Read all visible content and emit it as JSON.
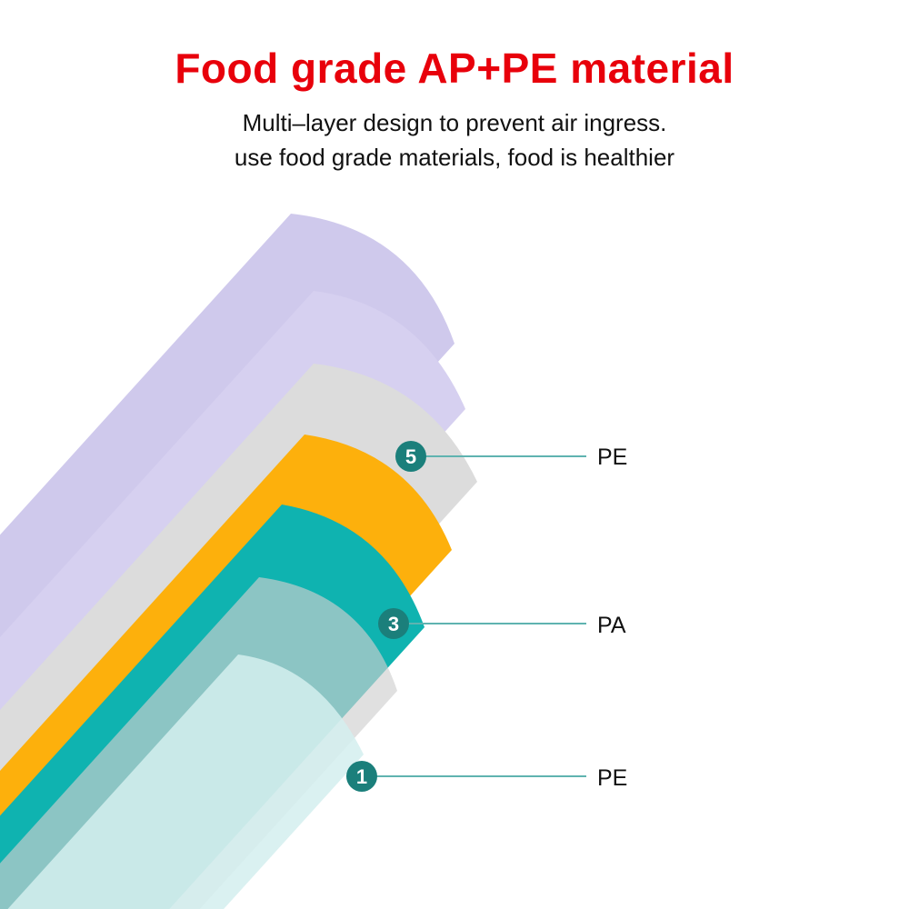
{
  "title": "Food grade AP+PE material",
  "subtitle_lines": [
    "Multi–layer design to prevent air ingress.",
    "use food grade materials, food is healthier"
  ],
  "callouts": [
    {
      "number": "5",
      "label": "PE"
    },
    {
      "number": "3",
      "label": "PA"
    },
    {
      "number": "1",
      "label": "PE"
    }
  ],
  "colors": {
    "title": "#e8000b",
    "layer_lavender": "#cfc9ec",
    "layer_gray": "#dcdcdc",
    "layer_orange": "#fdb00c",
    "layer_teal": "#0fb3b0",
    "layer_light_cyan": "#d3efee",
    "badge": "#1b7f7b",
    "leader_line": "#5fb3b0"
  }
}
